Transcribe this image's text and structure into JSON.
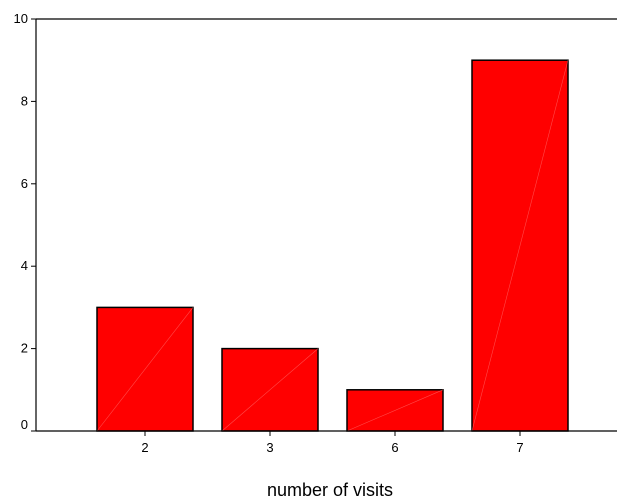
{
  "chart_data": {
    "type": "bar",
    "categories": [
      "2",
      "3",
      "6",
      "7"
    ],
    "values": [
      3,
      2,
      1,
      9
    ],
    "title": "",
    "xlabel": "number of visits",
    "ylabel": "",
    "ylim": [
      0,
      10
    ],
    "yticks": [
      0,
      2,
      4,
      6,
      8,
      10
    ],
    "grid": false,
    "legend": "none",
    "colors": {
      "bar_fill": "#ff0000",
      "bar_stroke": "#000000",
      "axis": "#000000",
      "background": "#ffffff"
    }
  }
}
